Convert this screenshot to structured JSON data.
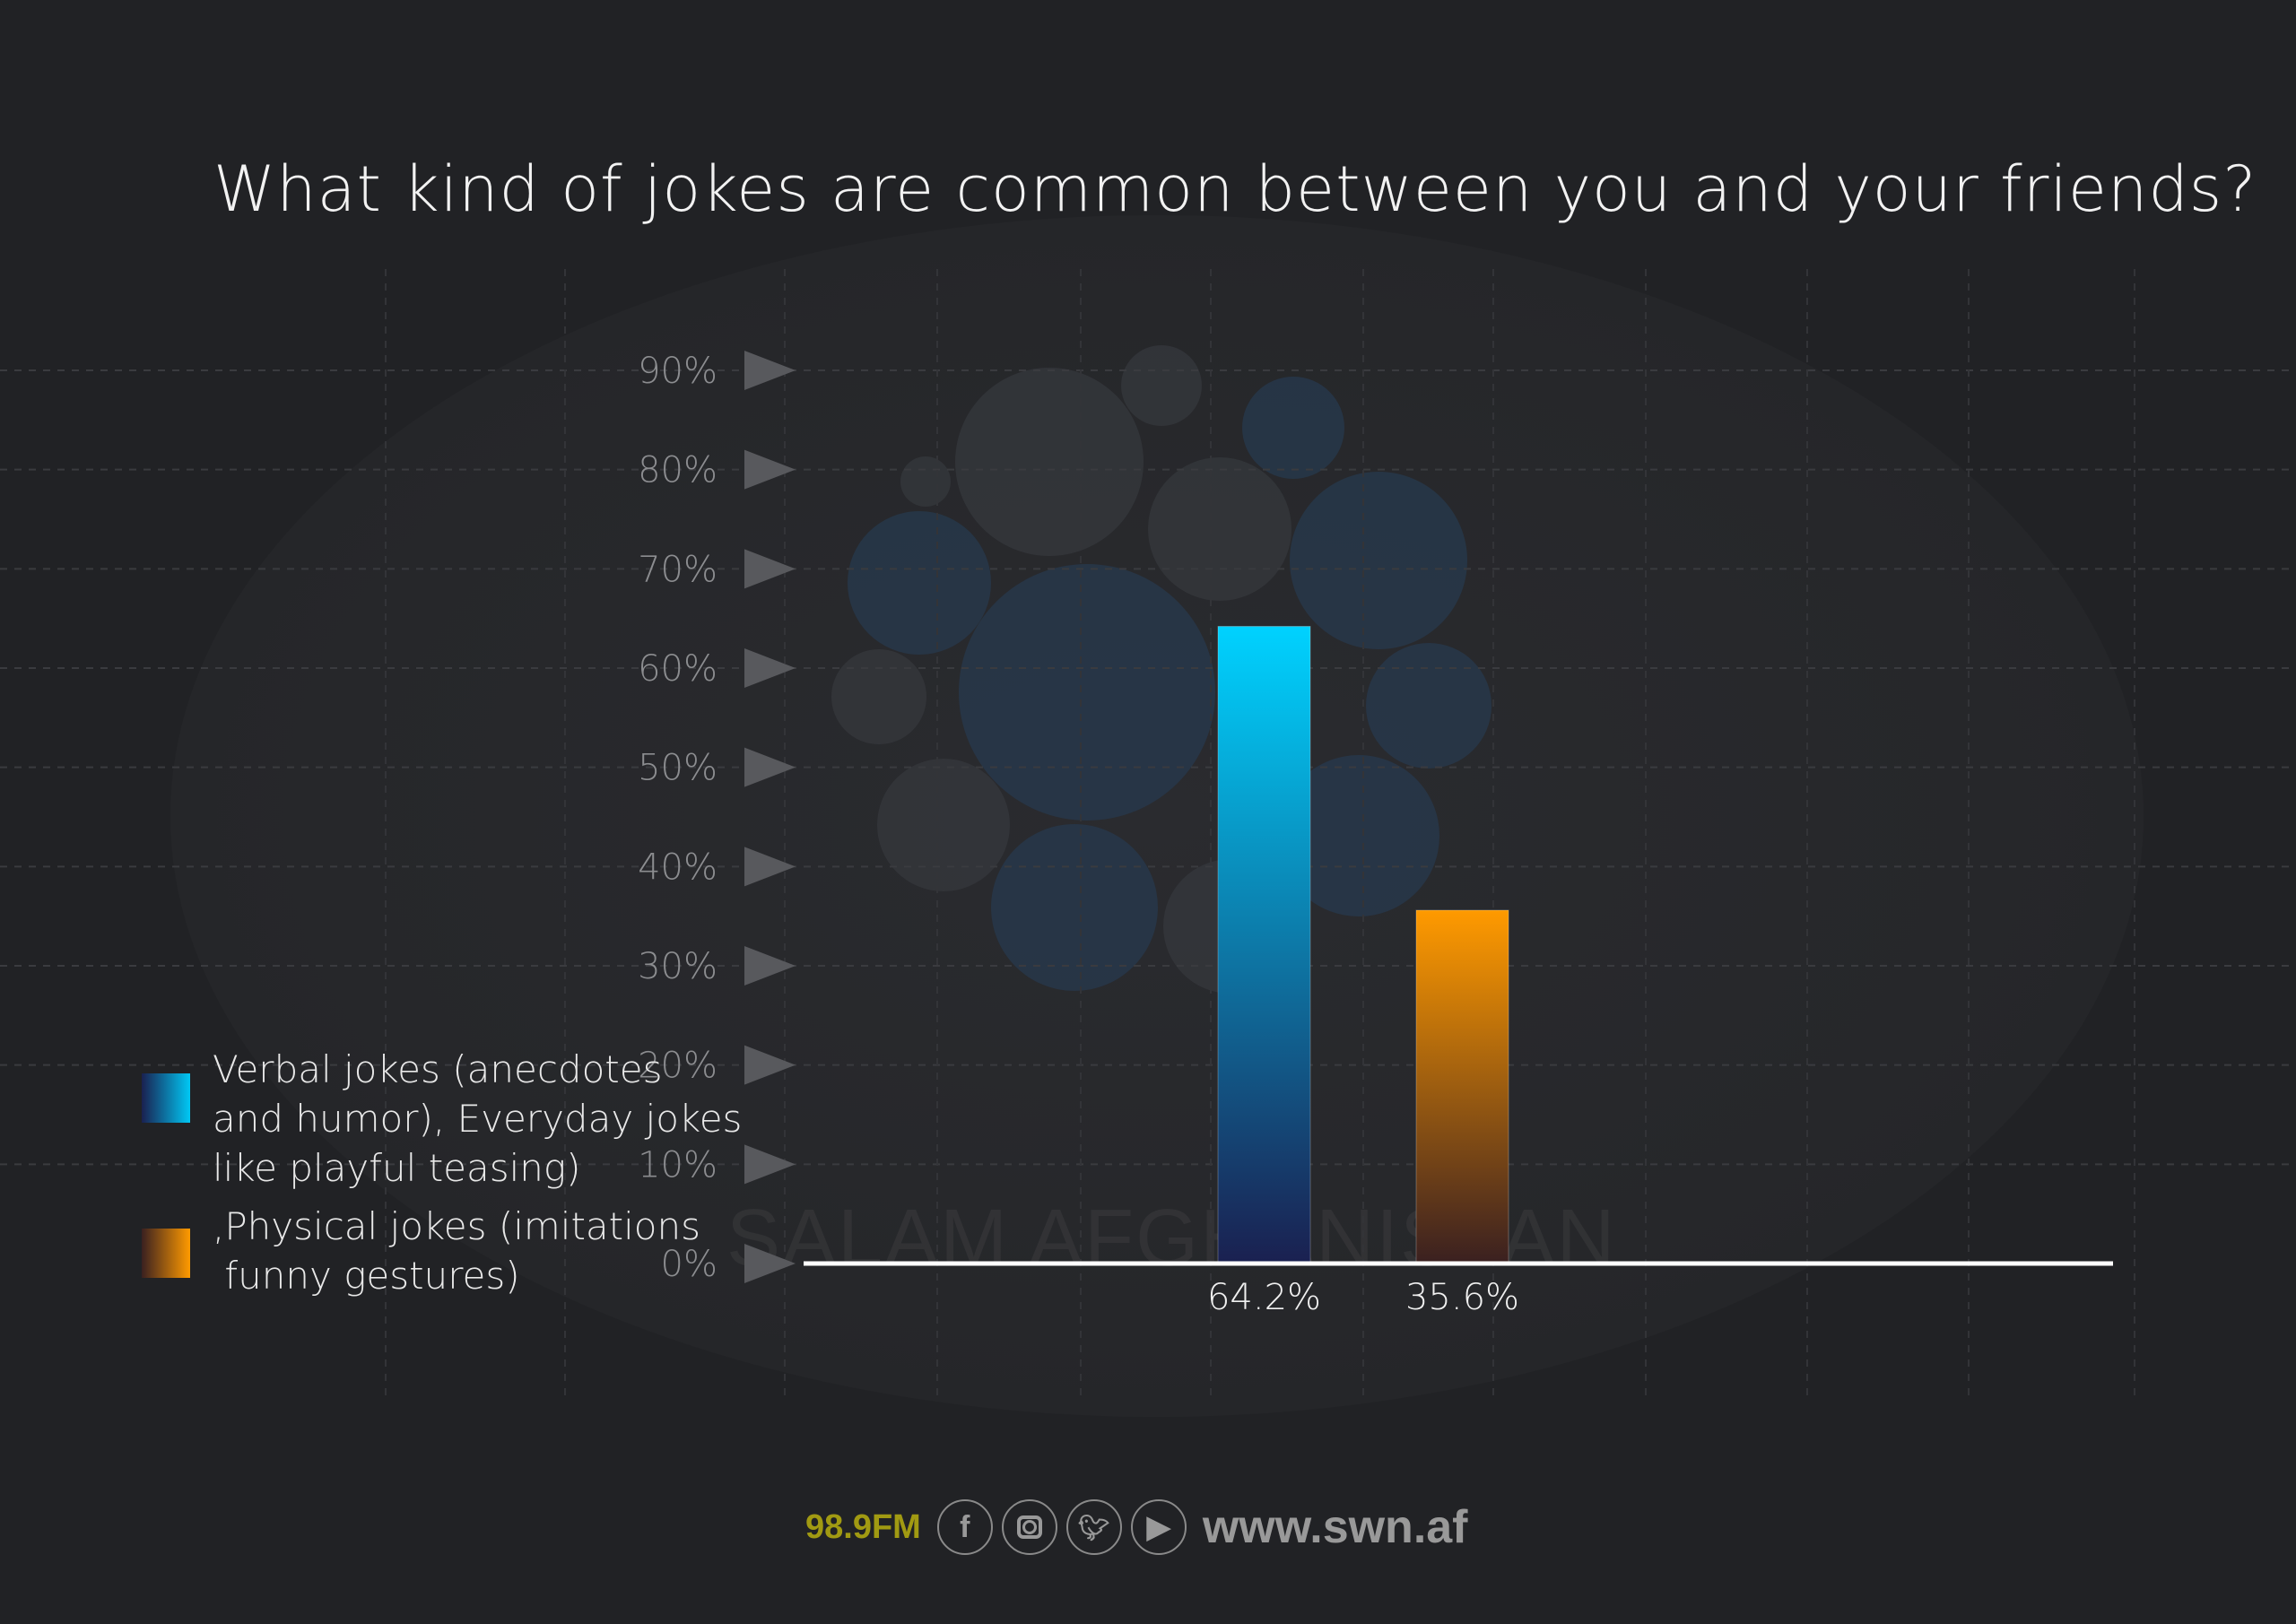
{
  "chart_data": {
    "type": "bar",
    "title": "What kind of jokes are common between you and your friends?",
    "categories": [
      "Verbal jokes (anecdotes\nand humor), Everyday jokes\nlike playful teasing)",
      ",Physical jokes (imitations\n funny gestures)"
    ],
    "values": [
      64.2,
      35.6
    ],
    "value_labels": [
      "64.2%",
      "35.6%"
    ],
    "ylim": [
      0,
      90
    ],
    "yticks": [
      "0%",
      "10%",
      "20%",
      "30%",
      "40%",
      "50%",
      "60%",
      "70%",
      "80%",
      "90%"
    ],
    "grid": true,
    "legend": "left",
    "colors": [
      {
        "top": "#00d2ff",
        "bottom": "#1a2050"
      },
      {
        "top": "#ff9a00",
        "bottom": "#3a2020"
      }
    ]
  },
  "watermark": "SALAM AFGHANISTAN",
  "footer": {
    "frequency": "98.9FM",
    "icons": [
      "facebook-icon",
      "instagram-icon",
      "twitter-icon",
      "play-icon"
    ],
    "url": "www.swn.af"
  }
}
